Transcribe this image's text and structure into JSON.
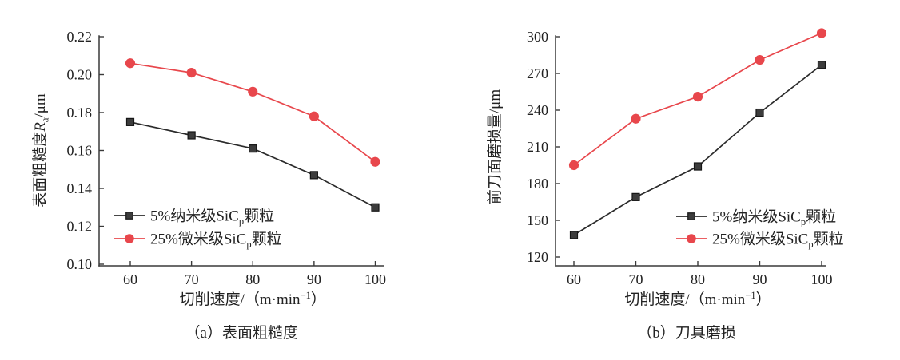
{
  "page": {
    "background": "#ffffff"
  },
  "colors": {
    "axis": "#3a3a3a",
    "text": "#222222",
    "series_black": "#2b2b2b",
    "series_red": "#e8474c"
  },
  "chart_data": [
    {
      "type": "line",
      "panel": "a",
      "caption": "（a）表面粗糙度",
      "xlabel": "切削速度/（m·min−1）",
      "xlabel_parts": [
        {
          "t": "切削速度/（m·min"
        },
        {
          "t": "−1",
          "sup": true
        },
        {
          "t": "）"
        }
      ],
      "ylabel": "表面粗糙度Ra/μm",
      "ylabel_parts": [
        {
          "t": "表面粗糙度"
        },
        {
          "t": "R",
          "italic": true
        },
        {
          "t": "a",
          "sub": true
        },
        {
          "t": "/μm"
        }
      ],
      "x": [
        60,
        70,
        80,
        90,
        100
      ],
      "xtick_labels": [
        "60",
        "70",
        "80",
        "90",
        "100"
      ],
      "xlim": [
        60,
        100
      ],
      "ylim": [
        0.1,
        0.22
      ],
      "yticks": [
        0.1,
        0.12,
        0.14,
        0.16,
        0.18,
        0.2,
        0.22
      ],
      "ytick_labels": [
        "0.10",
        "0.12",
        "0.14",
        "0.16",
        "0.18",
        "0.20",
        "0.22"
      ],
      "grid": false,
      "legend_position": "inside lower-left",
      "series": [
        {
          "key": "nano5",
          "name": "5%纳米级SiCp颗粒",
          "name_parts": [
            {
              "t": "5%纳米级SiC"
            },
            {
              "t": "p",
              "sub": true
            },
            {
              "t": "颗粒"
            }
          ],
          "marker": "square",
          "color": "#2b2b2b",
          "values": [
            0.175,
            0.168,
            0.161,
            0.147,
            0.13
          ]
        },
        {
          "key": "micro25",
          "name": "25%微米级SiCp颗粒",
          "name_parts": [
            {
              "t": "25%微米级SiC"
            },
            {
              "t": "p",
              "sub": true
            },
            {
              "t": "颗粒"
            }
          ],
          "marker": "circle",
          "color": "#e8474c",
          "values": [
            0.206,
            0.201,
            0.191,
            0.178,
            0.154
          ]
        }
      ]
    },
    {
      "type": "line",
      "panel": "b",
      "caption": "（b）刀具磨损",
      "xlabel": "切削速度/（m·min−1）",
      "xlabel_parts": [
        {
          "t": "切削速度/（m·min"
        },
        {
          "t": "−1",
          "sup": true
        },
        {
          "t": "）"
        }
      ],
      "ylabel": "前刀面磨损量/μm",
      "ylabel_parts": [
        {
          "t": "前刀面磨损量/μm"
        }
      ],
      "x": [
        60,
        70,
        80,
        90,
        100
      ],
      "xtick_labels": [
        "60",
        "70",
        "80",
        "90",
        "100"
      ],
      "xlim": [
        60,
        100
      ],
      "ylim": [
        120,
        300
      ],
      "yticks": [
        120,
        150,
        180,
        210,
        240,
        270,
        300
      ],
      "ytick_labels": [
        "120",
        "150",
        "180",
        "210",
        "240",
        "270",
        "300"
      ],
      "grid": false,
      "legend_position": "inside lower-right",
      "series": [
        {
          "key": "nano5",
          "name": "5%纳米级SiCp颗粒",
          "name_parts": [
            {
              "t": "5%纳米级SiC"
            },
            {
              "t": "p",
              "sub": true
            },
            {
              "t": "颗粒"
            }
          ],
          "marker": "square",
          "color": "#2b2b2b",
          "values": [
            138,
            169,
            194,
            238,
            277
          ]
        },
        {
          "key": "micro25",
          "name": "25%微米级SiCp颗粒",
          "name_parts": [
            {
              "t": "25%微米级SiC"
            },
            {
              "t": "p",
              "sub": true
            },
            {
              "t": "颗粒"
            }
          ],
          "marker": "circle",
          "color": "#e8474c",
          "values": [
            195,
            233,
            251,
            281,
            303
          ]
        }
      ]
    }
  ]
}
